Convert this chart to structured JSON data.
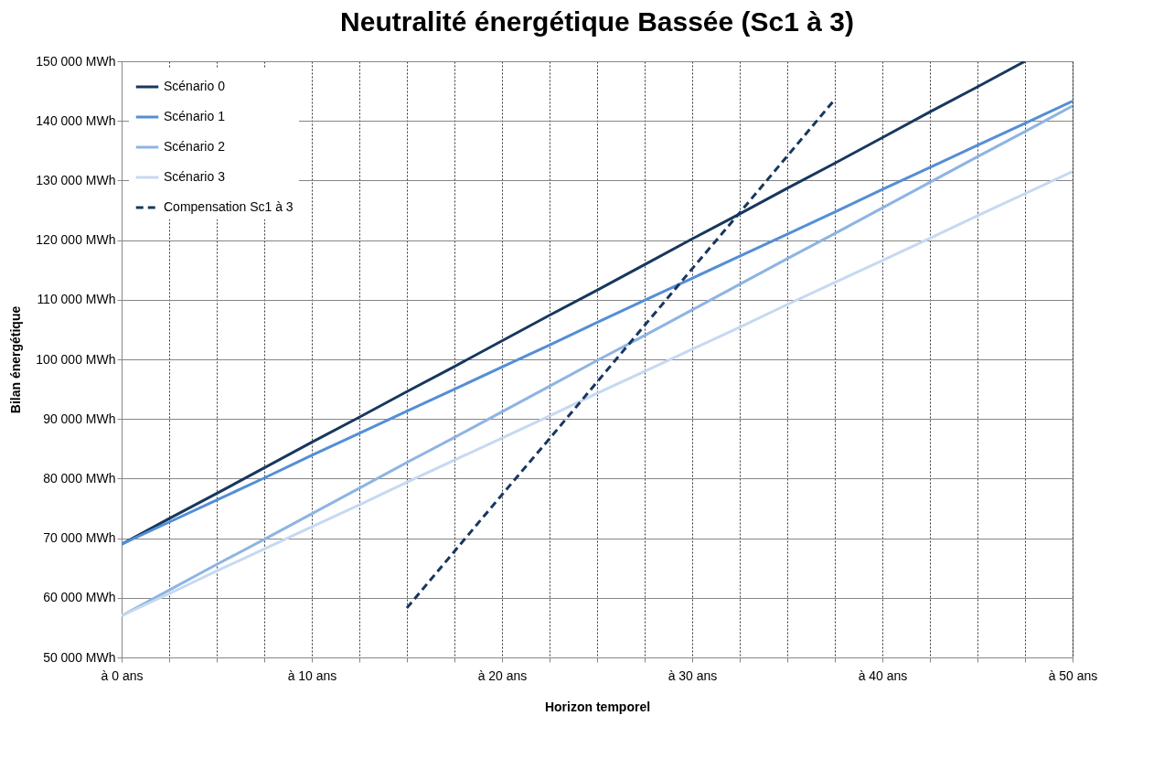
{
  "chart_data": {
    "type": "line",
    "title": "Neutralité énergétique Bassée (Sc1 à 3)",
    "xlabel": "Horizon temporel",
    "ylabel": "Bilan énergétique",
    "categories": [
      "à 0 ans",
      null,
      null,
      null,
      "à 10 ans",
      null,
      null,
      null,
      "à 20 ans",
      null,
      null,
      null,
      "à 30 ans",
      null,
      null,
      null,
      "à 40 ans",
      null,
      null,
      null,
      "à 50 ans"
    ],
    "ylim": [
      50000,
      150000
    ],
    "yticks": [
      {
        "value": 50000,
        "label": "50 000 MWh"
      },
      {
        "value": 60000,
        "label": "60 000 MWh"
      },
      {
        "value": 70000,
        "label": "70 000 MWh"
      },
      {
        "value": 80000,
        "label": "80 000 MWh"
      },
      {
        "value": 90000,
        "label": "90 000 MWh"
      },
      {
        "value": 100000,
        "label": "100 000 MWh"
      },
      {
        "value": 110000,
        "label": "110 000 MWh"
      },
      {
        "value": 120000,
        "label": "120 000 MWh"
      },
      {
        "value": 130000,
        "label": "130 000 MWh"
      },
      {
        "value": 140000,
        "label": "140 000 MWh"
      },
      {
        "value": 150000,
        "label": "150 000 MWh"
      }
    ],
    "grid": true,
    "legend": "top left",
    "marker": "none",
    "series": [
      {
        "name": "Scénario 0",
        "color": "#17375e",
        "line_style": "solid",
        "values": [
          69000,
          73300,
          77500,
          81800,
          86100,
          90300,
          94600,
          98800,
          103100,
          107400,
          111600,
          115900,
          120200,
          124400,
          128700,
          132900,
          137200,
          141500,
          145700,
          150000,
          null
        ]
      },
      {
        "name": "Scénario 1",
        "color": "#558ed5",
        "line_style": "solid",
        "values": [
          69000,
          72700,
          76400,
          80100,
          83900,
          87600,
          91300,
          95000,
          98700,
          102400,
          106200,
          109900,
          113600,
          117300,
          121000,
          124700,
          128500,
          132200,
          135900,
          139600,
          143300
        ]
      },
      {
        "name": "Scénario 2",
        "color": "#8eb4e3",
        "line_style": "solid",
        "values": [
          57000,
          61300,
          65600,
          69800,
          74100,
          78400,
          82700,
          86900,
          91200,
          95500,
          99800,
          104000,
          108300,
          112600,
          116900,
          121100,
          125400,
          129700,
          134000,
          138200,
          142500
        ]
      },
      {
        "name": "Scénario 3",
        "color": "#c6d9f1",
        "line_style": "solid",
        "values": [
          57000,
          60700,
          64500,
          68200,
          71900,
          75600,
          79400,
          83100,
          86800,
          90500,
          94300,
          98000,
          101700,
          105400,
          109200,
          112900,
          116600,
          120300,
          124100,
          127800,
          131500
        ]
      },
      {
        "name": "Compensation Sc1 à 3",
        "color": "#17375e",
        "line_style": "dashed",
        "values": [
          null,
          null,
          null,
          null,
          null,
          null,
          58300,
          67800,
          77300,
          86700,
          96200,
          105700,
          115200,
          124600,
          134100,
          143600,
          null,
          null,
          null,
          null,
          null
        ]
      }
    ]
  }
}
